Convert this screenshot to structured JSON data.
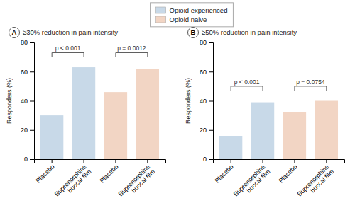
{
  "chart_data": [
    {
      "type": "bar",
      "label": "A",
      "title": "≥30% reduction in pain intensity",
      "ylabel": "Responders (%)",
      "categories": [
        "Placebo",
        "Buprenorphine\nbuccal film",
        "Placebo",
        "Buprenorphine\nbuccal film"
      ],
      "series": [
        {
          "name": "Opioid experienced",
          "color": "#c8d9e8",
          "values": [
            30,
            63,
            null,
            null
          ]
        },
        {
          "name": "Opioid naive",
          "color": "#f2d5c4",
          "values": [
            null,
            null,
            46,
            62
          ]
        }
      ],
      "ylim": [
        0,
        80
      ],
      "yticks": [
        0,
        20,
        40,
        60,
        80
      ],
      "grid": false,
      "legend": "top",
      "annotations": [
        {
          "text": "p < 0.001",
          "start": 0,
          "end": 1,
          "y": 73,
          "drop": 3
        },
        {
          "text": "p = 0.0012",
          "start": 2,
          "end": 3,
          "y": 73,
          "drop": 3
        }
      ]
    },
    {
      "type": "bar",
      "label": "B",
      "title": "≥50% reduction in pain intensity",
      "ylabel": "Responders (%)",
      "categories": [
        "Placebo",
        "Buprenorphine\nbuccal film",
        "Placebo",
        "Buprenorphine\nbuccal film"
      ],
      "series": [
        {
          "name": "Opioid experienced",
          "color": "#c8d9e8",
          "values": [
            16,
            39,
            null,
            null
          ]
        },
        {
          "name": "Opioid naive",
          "color": "#f2d5c4",
          "values": [
            null,
            null,
            32,
            40
          ]
        }
      ],
      "ylim": [
        0,
        80
      ],
      "yticks": [
        0,
        20,
        40,
        60,
        80
      ],
      "grid": false,
      "annotations": [
        {
          "text": "p < 0.001",
          "start": 0,
          "end": 1,
          "y": 50,
          "drop": 3
        },
        {
          "text": "p = 0.0754",
          "start": 2,
          "end": 3,
          "y": 50,
          "drop": 3
        }
      ]
    }
  ]
}
